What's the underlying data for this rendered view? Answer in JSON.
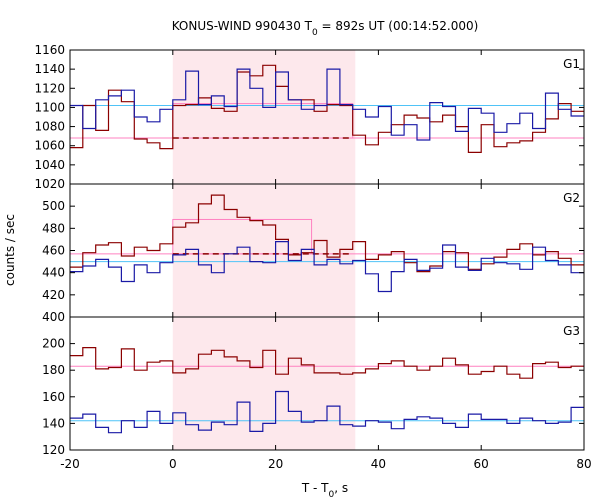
{
  "chart_data": {
    "type": "line",
    "title": {
      "prefix": "KONUS-WIND 990430 T",
      "sub": "0",
      "suffix": " = 892s UT (00:14:52.000)"
    },
    "xlabel": {
      "prefix": "T - T",
      "sub": "0",
      "suffix": ", s"
    },
    "ylabel": "counts / sec",
    "xlim": [
      -20,
      80
    ],
    "xticks": [
      "-20",
      "0",
      "20",
      "40",
      "60",
      "80"
    ],
    "shaded_interval": [
      0,
      35.5
    ],
    "colors": {
      "red_series": "#8b0000",
      "blue_series": "#1a1aa6",
      "blue_level": "#4fc3f7",
      "red_level": "#ff80c0",
      "shade": "#fde8ec"
    },
    "panels": [
      {
        "label": "G1",
        "ylim": [
          1020,
          1160
        ],
        "yticks": [
          "1020",
          "1040",
          "1060",
          "1080",
          "1100",
          "1120",
          "1140",
          "1160"
        ],
        "bin_edges": [
          -20,
          -17.5,
          -15,
          -12.5,
          -10,
          -7.5,
          -5,
          -2.5,
          0,
          2.5,
          5,
          7.5,
          10,
          12.5,
          15,
          17.5,
          20,
          22.5,
          25,
          27.5,
          30,
          32.5,
          35,
          37.5,
          40,
          42.5,
          45,
          47.5,
          50,
          52.5,
          55,
          57.5,
          60,
          62.5,
          65,
          67.5,
          70,
          72.5,
          75,
          77.5,
          80
        ],
        "red_values": [
          1058,
          1102,
          1076,
          1118,
          1106,
          1067,
          1063,
          1057,
          1102,
          1103,
          1110,
          1099,
          1096,
          1137,
          1133,
          1144,
          1122,
          1108,
          1108,
          1096,
          1103,
          1102,
          1071,
          1061,
          1074,
          1082,
          1092,
          1089,
          1085,
          1092,
          1080,
          1053,
          1082,
          1059,
          1063,
          1065,
          1074,
          1088,
          1104,
          1096
        ],
        "blue_values": [
          1102,
          1078,
          1108,
          1112,
          1118,
          1090,
          1085,
          1098,
          1108,
          1138,
          1103,
          1112,
          1101,
          1140,
          1120,
          1100,
          1137,
          1108,
          1098,
          1102,
          1140,
          1103,
          1098,
          1090,
          1101,
          1071,
          1082,
          1066,
          1105,
          1101,
          1075,
          1099,
          1094,
          1074,
          1083,
          1094,
          1078,
          1115,
          1098,
          1091
        ],
        "red_level": 1068,
        "blue_level": 1102,
        "red_dashed_level": 1068,
        "pink_box": {
          "x": [
            0,
            35
          ],
          "y": 1104
        }
      },
      {
        "label": "G2",
        "ylim": [
          400,
          520
        ],
        "yticks": [
          "400",
          "420",
          "440",
          "460",
          "480",
          "500"
        ],
        "bin_edges": [
          -20,
          -17.5,
          -15,
          -12.5,
          -10,
          -7.5,
          -5,
          -2.5,
          0,
          2.5,
          5,
          7.5,
          10,
          12.5,
          15,
          17.5,
          20,
          22.5,
          25,
          27.5,
          30,
          32.5,
          35,
          37.5,
          40,
          42.5,
          45,
          47.5,
          50,
          52.5,
          55,
          57.5,
          60,
          62.5,
          65,
          67.5,
          70,
          72.5,
          75,
          77.5,
          80
        ],
        "red_values": [
          445,
          458,
          465,
          467,
          455,
          463,
          460,
          466,
          481,
          485,
          502,
          510,
          497,
          490,
          487,
          483,
          470,
          456,
          458,
          469,
          454,
          461,
          468,
          452,
          456,
          459,
          449,
          441,
          446,
          459,
          458,
          443,
          448,
          454,
          461,
          466,
          456,
          459,
          453,
          447
        ],
        "blue_values": [
          441,
          446,
          452,
          445,
          432,
          447,
          440,
          449,
          456,
          461,
          447,
          440,
          457,
          463,
          450,
          449,
          468,
          451,
          461,
          447,
          452,
          448,
          451,
          439,
          423,
          441,
          452,
          442,
          444,
          465,
          445,
          442,
          453,
          449,
          448,
          443,
          463,
          451,
          447,
          440
        ],
        "red_level": 457,
        "blue_level": 450,
        "red_dashed_level": 457,
        "pink_box": {
          "x": [
            0,
            27
          ],
          "y": 488
        }
      },
      {
        "label": "G3",
        "ylim": [
          120,
          220
        ],
        "yticks": [
          "120",
          "140",
          "160",
          "180",
          "200"
        ],
        "bin_edges": [
          -20,
          -17.5,
          -15,
          -12.5,
          -10,
          -7.5,
          -5,
          -2.5,
          0,
          2.5,
          5,
          7.5,
          10,
          12.5,
          15,
          17.5,
          20,
          22.5,
          25,
          27.5,
          30,
          32.5,
          35,
          37.5,
          40,
          42.5,
          45,
          47.5,
          50,
          52.5,
          55,
          57.5,
          60,
          62.5,
          65,
          67.5,
          70,
          72.5,
          75,
          77.5,
          80
        ],
        "red_values": [
          191,
          197,
          181,
          182,
          196,
          180,
          186,
          187,
          178,
          181,
          192,
          195,
          190,
          187,
          182,
          195,
          177,
          189,
          184,
          178,
          178,
          177,
          178,
          181,
          185,
          187,
          183,
          180,
          183,
          189,
          184,
          177,
          179,
          183,
          177,
          174,
          185,
          186,
          182,
          183
        ],
        "blue_values": [
          144,
          147,
          137,
          133,
          142,
          137,
          149,
          140,
          148,
          139,
          135,
          141,
          139,
          156,
          134,
          140,
          164,
          149,
          141,
          142,
          153,
          139,
          138,
          142,
          141,
          136,
          143,
          145,
          144,
          140,
          137,
          147,
          143,
          143,
          140,
          144,
          142,
          140,
          141,
          152
        ],
        "red_level": 183,
        "blue_level": 142,
        "red_dashed_level": null,
        "pink_box": null
      }
    ]
  }
}
